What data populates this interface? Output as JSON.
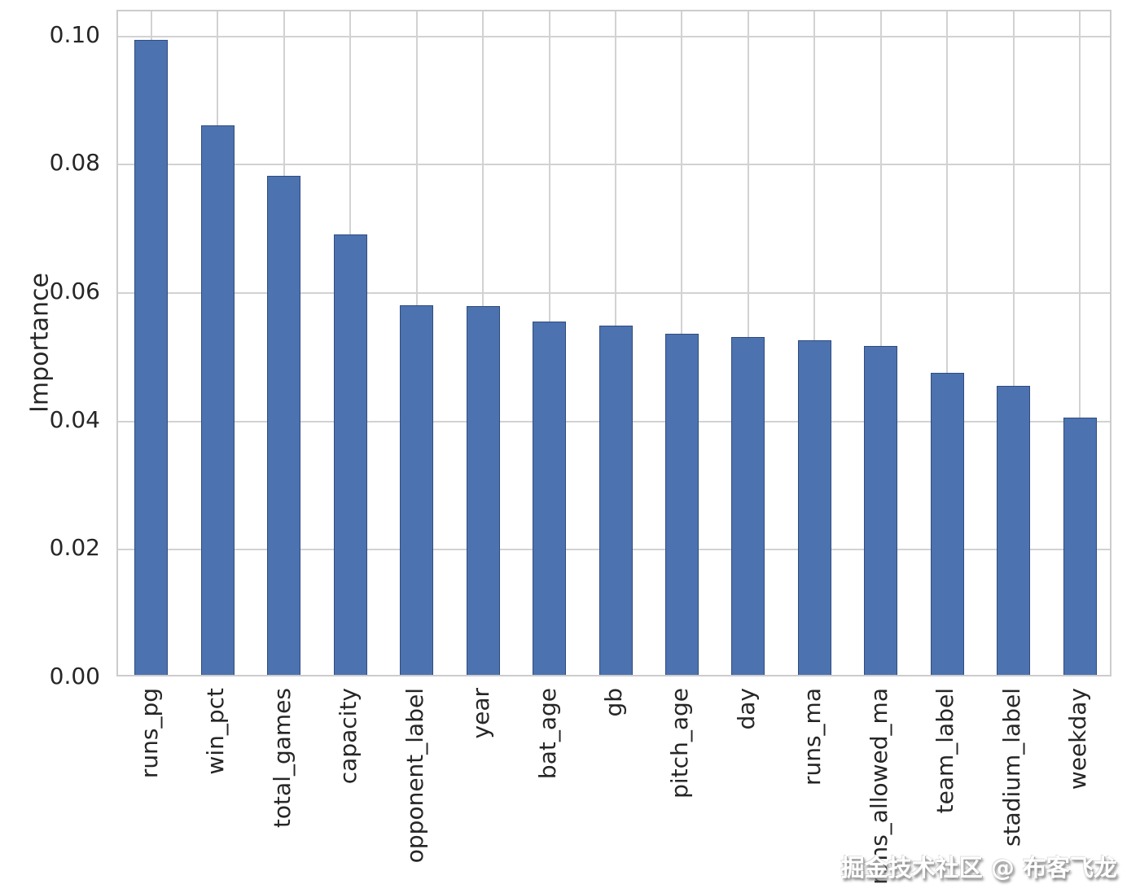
{
  "chart_data": {
    "type": "bar",
    "title": "",
    "xlabel": "",
    "ylabel": "Importance",
    "categories": [
      "runs_pg",
      "win_pct",
      "total_games",
      "capacity",
      "opponent_label",
      "year",
      "bat_age",
      "gb",
      "pitch_age",
      "day",
      "runs_ma",
      "runs_allowed_ma",
      "team_label",
      "stadium_label",
      "weekday"
    ],
    "values": [
      0.099,
      0.0856,
      0.0778,
      0.0686,
      0.0576,
      0.0575,
      0.055,
      0.0544,
      0.0532,
      0.0526,
      0.0522,
      0.0513,
      0.0471,
      0.045,
      0.0401
    ],
    "yticks": [
      "0.00",
      "0.02",
      "0.04",
      "0.06",
      "0.08",
      "0.10"
    ],
    "ylim": [
      0,
      0.1039
    ],
    "grid": true,
    "legend": false,
    "bar_color": "#4C72B0",
    "grid_color": "#d2d2d2",
    "axis_color": "#cccccc",
    "text_color": "#262626"
  },
  "watermark": {
    "text": "掘金技术社区 @ 布客飞龙"
  }
}
